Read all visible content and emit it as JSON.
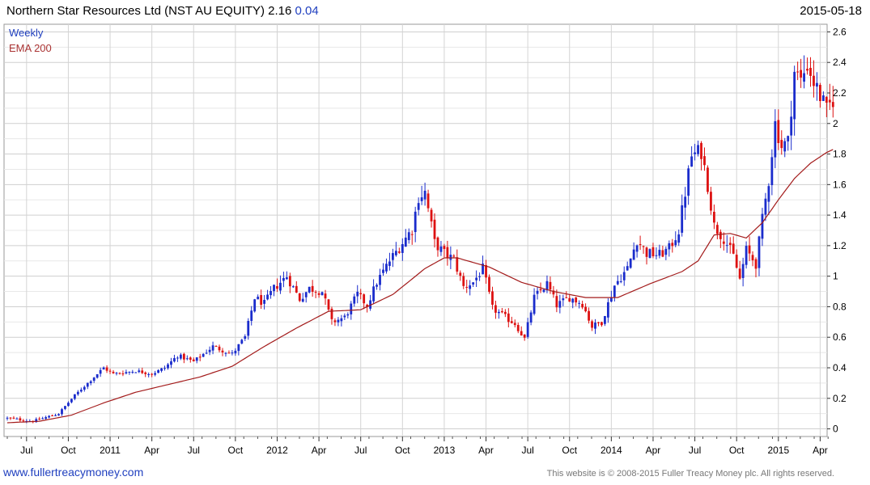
{
  "header": {
    "title": "Northern Star Resources Ltd (NST AU EQUITY) 2.16",
    "change": "0.04",
    "date": "2015-05-18"
  },
  "footer": {
    "website": "www.fullertreacymoney.com",
    "copyright": "This website is © 2008-2015 Fuller Treacy Money plc. All rights reserved."
  },
  "chart_data": {
    "type": "candlestick",
    "legend": [
      "Weekly",
      "EMA 200"
    ],
    "colors": {
      "up": "#1a2ccc",
      "down": "#dd1111",
      "ema": "#a31b1b",
      "grid": "#d4d4d4"
    },
    "y_ticks": [
      "0",
      "0.2",
      "0.4",
      "0.6",
      "0.8",
      "1",
      "1.2",
      "1.4",
      "1.6",
      "1.8",
      "2",
      "2.2",
      "2.4",
      "2.6"
    ],
    "ylim": [
      -0.05,
      2.65
    ],
    "x_ticks": [
      "Jul",
      "Oct",
      "2011",
      "Apr",
      "Jul",
      "Oct",
      "2012",
      "Apr",
      "Jul",
      "Oct",
      "2013",
      "Apr",
      "Jul",
      "Oct",
      "2014",
      "Apr",
      "Jul",
      "Oct",
      "2015",
      "Apr"
    ],
    "x_tick_weeks": [
      6,
      19,
      32,
      45,
      58,
      71,
      84,
      97,
      110,
      123,
      136,
      149,
      162,
      175,
      188,
      201,
      214,
      227,
      240,
      253
    ],
    "close_anchors": [
      [
        0,
        0.07
      ],
      [
        8,
        0.05
      ],
      [
        16,
        0.1
      ],
      [
        21,
        0.22
      ],
      [
        26,
        0.32
      ],
      [
        30,
        0.4
      ],
      [
        33,
        0.36
      ],
      [
        40,
        0.38
      ],
      [
        45,
        0.36
      ],
      [
        49,
        0.4
      ],
      [
        53,
        0.48
      ],
      [
        58,
        0.44
      ],
      [
        64,
        0.54
      ],
      [
        70,
        0.49
      ],
      [
        74,
        0.6
      ],
      [
        77,
        0.86
      ],
      [
        80,
        0.82
      ],
      [
        83,
        0.92
      ],
      [
        87,
        1.0
      ],
      [
        91,
        0.85
      ],
      [
        94,
        0.92
      ],
      [
        98,
        0.9
      ],
      [
        101,
        0.7
      ],
      [
        105,
        0.73
      ],
      [
        109,
        0.88
      ],
      [
        112,
        0.81
      ],
      [
        115,
        0.96
      ],
      [
        119,
        1.1
      ],
      [
        123,
        1.22
      ],
      [
        126,
        1.31
      ],
      [
        128,
        1.52
      ],
      [
        130,
        1.55
      ],
      [
        133,
        1.22
      ],
      [
        136,
        1.15
      ],
      [
        139,
        1.11
      ],
      [
        142,
        0.93
      ],
      [
        145,
        0.96
      ],
      [
        148,
        1.05
      ],
      [
        151,
        0.79
      ],
      [
        155,
        0.73
      ],
      [
        158,
        0.69
      ],
      [
        161,
        0.59
      ],
      [
        164,
        0.86
      ],
      [
        168,
        0.95
      ],
      [
        171,
        0.81
      ],
      [
        175,
        0.86
      ],
      [
        179,
        0.82
      ],
      [
        182,
        0.67
      ],
      [
        185,
        0.7
      ],
      [
        189,
        0.94
      ],
      [
        193,
        1.05
      ],
      [
        196,
        1.24
      ],
      [
        199,
        1.15
      ],
      [
        203,
        1.14
      ],
      [
        206,
        1.18
      ],
      [
        209,
        1.3
      ],
      [
        211,
        1.55
      ],
      [
        213,
        1.79
      ],
      [
        216,
        1.82
      ],
      [
        218,
        1.6
      ],
      [
        220,
        1.33
      ],
      [
        223,
        1.25
      ],
      [
        226,
        1.13
      ],
      [
        228,
        0.98
      ],
      [
        230,
        1.17
      ],
      [
        233,
        1.08
      ],
      [
        235,
        1.37
      ],
      [
        237,
        1.63
      ],
      [
        239,
        2.0
      ],
      [
        241,
        1.85
      ],
      [
        243,
        1.88
      ],
      [
        245,
        2.34
      ],
      [
        247,
        2.28
      ],
      [
        249,
        2.39
      ],
      [
        251,
        2.27
      ],
      [
        253,
        2.18
      ],
      [
        255,
        2.08
      ],
      [
        257,
        2.16
      ]
    ],
    "ema_anchors": [
      [
        0,
        0.04
      ],
      [
        10,
        0.05
      ],
      [
        20,
        0.09
      ],
      [
        30,
        0.17
      ],
      [
        40,
        0.24
      ],
      [
        50,
        0.29
      ],
      [
        60,
        0.34
      ],
      [
        70,
        0.41
      ],
      [
        80,
        0.54
      ],
      [
        90,
        0.66
      ],
      [
        100,
        0.77
      ],
      [
        110,
        0.78
      ],
      [
        120,
        0.88
      ],
      [
        130,
        1.05
      ],
      [
        136,
        1.12
      ],
      [
        140,
        1.12
      ],
      [
        150,
        1.06
      ],
      [
        160,
        0.96
      ],
      [
        170,
        0.9
      ],
      [
        180,
        0.86
      ],
      [
        190,
        0.86
      ],
      [
        200,
        0.95
      ],
      [
        210,
        1.03
      ],
      [
        215,
        1.1
      ],
      [
        220,
        1.27
      ],
      [
        225,
        1.28
      ],
      [
        230,
        1.25
      ],
      [
        235,
        1.35
      ],
      [
        240,
        1.5
      ],
      [
        245,
        1.64
      ],
      [
        250,
        1.74
      ],
      [
        255,
        1.81
      ],
      [
        257,
        1.83
      ]
    ]
  }
}
